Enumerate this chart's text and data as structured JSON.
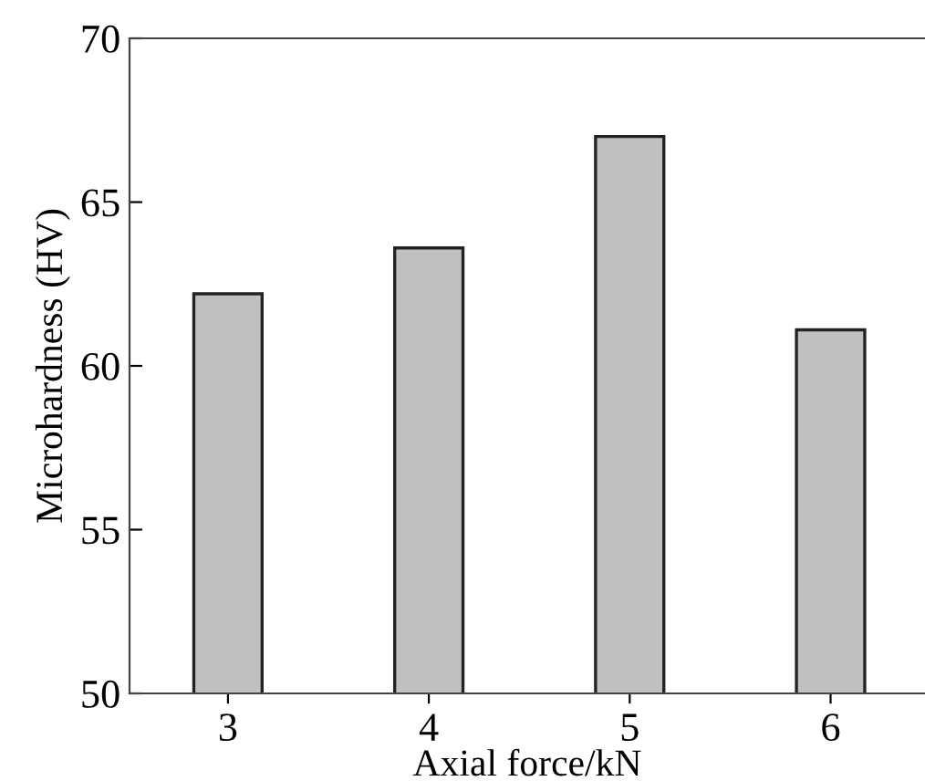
{
  "chart_data": {
    "type": "bar",
    "xlabel": "Axial force/kN",
    "ylabel": "Microhardness (HV)",
    "categories": [
      "3",
      "4",
      "5",
      "6"
    ],
    "values": [
      62.2,
      63.6,
      67.0,
      61.1
    ],
    "color": "#c0c0c0",
    "ylim": [
      50,
      70
    ],
    "yticks": [
      50,
      55,
      60,
      65,
      70
    ],
    "grid": false,
    "legend": false
  }
}
